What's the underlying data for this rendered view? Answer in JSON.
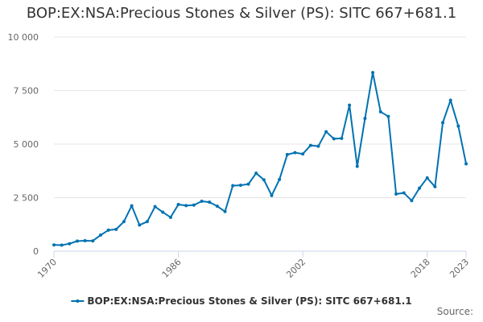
{
  "chart_data": {
    "type": "line",
    "title": "BOP:EX:NSA:Precious Stones & Silver (PS): SITC 667+681.1",
    "series": [
      {
        "name": "BOP:EX:NSA:Precious Stones & Silver (PS): SITC 667+681.1",
        "color": "#0072b2",
        "x": [
          1970,
          1971,
          1972,
          1973,
          1974,
          1975,
          1976,
          1977,
          1978,
          1979,
          1980,
          1981,
          1982,
          1983,
          1984,
          1985,
          1986,
          1987,
          1988,
          1989,
          1990,
          1991,
          1992,
          1993,
          1994,
          1995,
          1996,
          1997,
          1998,
          1999,
          2000,
          2001,
          2002,
          2003,
          2004,
          2005,
          2006,
          2007,
          2008,
          2009,
          2010,
          2011,
          2012,
          2013,
          2014,
          2015,
          2016,
          2017,
          2018,
          2019,
          2020,
          2021,
          2022,
          2023
        ],
        "values": [
          290,
          280,
          350,
          470,
          490,
          480,
          750,
          980,
          1020,
          1380,
          2120,
          1220,
          1380,
          2080,
          1820,
          1580,
          2180,
          2130,
          2150,
          2330,
          2290,
          2100,
          1850,
          3060,
          3080,
          3130,
          3640,
          3330,
          2600,
          3350,
          4510,
          4600,
          4540,
          4940,
          4900,
          5580,
          5250,
          5270,
          6820,
          3960,
          6200,
          8340,
          6510,
          6290,
          2670,
          2720,
          2360,
          2940,
          3420,
          3010,
          6000,
          7050,
          5840,
          4080
        ]
      }
    ],
    "y_ticks": [
      "0",
      "2 500",
      "5 000",
      "7 500",
      "10 000"
    ],
    "x_ticks": [
      "1970",
      "1986",
      "2002",
      "2018",
      "2023"
    ],
    "ylim": [
      0,
      10000
    ],
    "grid": true,
    "legend": "bottom-center",
    "source_label": "Source:"
  }
}
